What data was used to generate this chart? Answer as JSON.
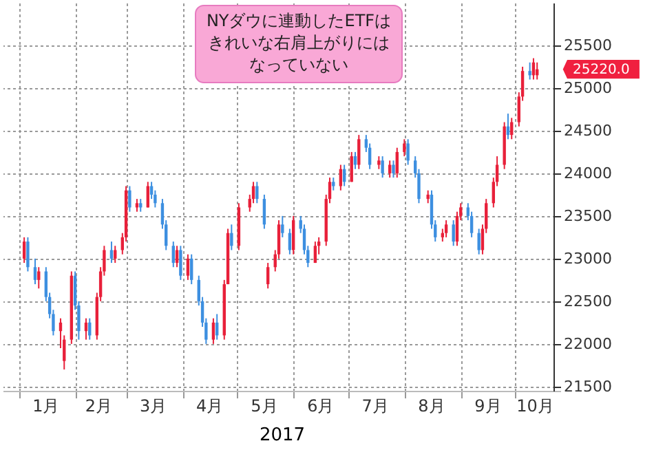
{
  "chart_data": {
    "type": "candlestick",
    "xlabel": "2017",
    "x": [
      "2017-01-04",
      "2017-01-06",
      "2017-01-10",
      "2017-01-12",
      "2017-01-16",
      "2017-01-18",
      "2017-01-20",
      "2017-01-24",
      "2017-01-26",
      "2017-01-30",
      "2017-02-01",
      "2017-02-03",
      "2017-02-07",
      "2017-02-09",
      "2017-02-13",
      "2017-02-15",
      "2017-02-17",
      "2017-02-21",
      "2017-02-23",
      "2017-02-27",
      "2017-03-01",
      "2017-03-03",
      "2017-03-07",
      "2017-03-09",
      "2017-03-13",
      "2017-03-15",
      "2017-03-17",
      "2017-03-21",
      "2017-03-23",
      "2017-03-27",
      "2017-03-29",
      "2017-03-31",
      "2017-04-04",
      "2017-04-06",
      "2017-04-10",
      "2017-04-12",
      "2017-04-14",
      "2017-04-18",
      "2017-04-20",
      "2017-04-24",
      "2017-04-26",
      "2017-04-28",
      "2017-05-02",
      "2017-05-08",
      "2017-05-10",
      "2017-05-12",
      "2017-05-16",
      "2017-05-18",
      "2017-05-22",
      "2017-05-24",
      "2017-05-26",
      "2017-05-30",
      "2017-06-01",
      "2017-06-05",
      "2017-06-07",
      "2017-06-09",
      "2017-06-13",
      "2017-06-15",
      "2017-06-19",
      "2017-06-21",
      "2017-06-23",
      "2017-06-27",
      "2017-06-29",
      "2017-07-03",
      "2017-07-05",
      "2017-07-07",
      "2017-07-11",
      "2017-07-13",
      "2017-07-18",
      "2017-07-20",
      "2017-07-24",
      "2017-07-26",
      "2017-07-28",
      "2017-08-01",
      "2017-08-03",
      "2017-08-07",
      "2017-08-09",
      "2017-08-14",
      "2017-08-16",
      "2017-08-18",
      "2017-08-22",
      "2017-08-24",
      "2017-08-28",
      "2017-08-30",
      "2017-09-01",
      "2017-09-05",
      "2017-09-07",
      "2017-09-11",
      "2017-09-13",
      "2017-09-15",
      "2017-09-19",
      "2017-09-21",
      "2017-09-25",
      "2017-09-27",
      "2017-09-29",
      "2017-10-03",
      "2017-10-05",
      "2017-10-09",
      "2017-10-11",
      "2017-10-13"
    ],
    "ohlc": [
      [
        23000,
        23250,
        22950,
        23200
      ],
      [
        23200,
        23250,
        22850,
        22900
      ],
      [
        22900,
        23000,
        22700,
        22750
      ],
      [
        22750,
        22900,
        22650,
        22850
      ],
      [
        22850,
        22900,
        22500,
        22550
      ],
      [
        22550,
        22600,
        22300,
        22350
      ],
      [
        22350,
        22400,
        22100,
        22150
      ],
      [
        22150,
        22300,
        21950,
        22250
      ],
      [
        21800,
        22100,
        21700,
        22050
      ],
      [
        22050,
        22850,
        22000,
        22800
      ],
      [
        22800,
        22850,
        22400,
        22450
      ],
      [
        22450,
        22500,
        22050,
        22150
      ],
      [
        22150,
        22300,
        22050,
        22250
      ],
      [
        22250,
        22300,
        22050,
        22100
      ],
      [
        22100,
        22600,
        22050,
        22550
      ],
      [
        22550,
        22900,
        22500,
        22850
      ],
      [
        22850,
        23150,
        22800,
        23100
      ],
      [
        23100,
        23200,
        22950,
        23000
      ],
      [
        23000,
        23150,
        22950,
        23100
      ],
      [
        23100,
        23300,
        23050,
        23250
      ],
      [
        23250,
        23850,
        23200,
        23800
      ],
      [
        23800,
        23850,
        23550,
        23600
      ],
      [
        23600,
        23700,
        23550,
        23650
      ],
      [
        23650,
        23700,
        23550,
        23600
      ],
      [
        23600,
        23900,
        23600,
        23850
      ],
      [
        23850,
        23900,
        23700,
        23750
      ],
      [
        23750,
        23800,
        23600,
        23650
      ],
      [
        23650,
        23700,
        23350,
        23400
      ],
      [
        23400,
        23450,
        23100,
        23150
      ],
      [
        23150,
        23200,
        22900,
        22950
      ],
      [
        22950,
        23150,
        22900,
        23100
      ],
      [
        23100,
        23150,
        22750,
        22800
      ],
      [
        22800,
        23050,
        22750,
        23000
      ],
      [
        23000,
        23050,
        22700,
        22750
      ],
      [
        22750,
        22800,
        22450,
        22500
      ],
      [
        22500,
        22550,
        22200,
        22250
      ],
      [
        22250,
        22300,
        22000,
        22050
      ],
      [
        22050,
        22300,
        22000,
        22250
      ],
      [
        22250,
        22350,
        22050,
        22100
      ],
      [
        22100,
        22750,
        22050,
        22700
      ],
      [
        22700,
        23350,
        22700,
        23300
      ],
      [
        23300,
        23400,
        23100,
        23150
      ],
      [
        23150,
        23650,
        23100,
        23600
      ],
      [
        23600,
        23750,
        23550,
        23700
      ],
      [
        23700,
        23900,
        23650,
        23850
      ],
      [
        23850,
        23900,
        23650,
        23700
      ],
      [
        23700,
        23750,
        23350,
        23400
      ],
      [
        22700,
        22950,
        22650,
        22900
      ],
      [
        22900,
        23100,
        22850,
        23050
      ],
      [
        23050,
        23450,
        23000,
        23400
      ],
      [
        23400,
        23500,
        23250,
        23300
      ],
      [
        23300,
        23350,
        23050,
        23100
      ],
      [
        23100,
        23500,
        23050,
        23450
      ],
      [
        23450,
        23500,
        23300,
        23350
      ],
      [
        23350,
        23400,
        23050,
        23100
      ],
      [
        23100,
        23150,
        22900,
        22950
      ],
      [
        22950,
        23200,
        22950,
        23150
      ],
      [
        23150,
        23250,
        23050,
        23200
      ],
      [
        23200,
        23750,
        23150,
        23700
      ],
      [
        23700,
        23950,
        23650,
        23900
      ],
      [
        23900,
        23950,
        23800,
        23850
      ],
      [
        23850,
        24100,
        23800,
        24050
      ],
      [
        24050,
        24100,
        23850,
        23900
      ],
      [
        23900,
        24250,
        23900,
        24200
      ],
      [
        24200,
        24250,
        24050,
        24100
      ],
      [
        24100,
        24450,
        24050,
        24400
      ],
      [
        24400,
        24450,
        24250,
        24300
      ],
      [
        24300,
        24350,
        24050,
        24100
      ],
      [
        24100,
        24200,
        24050,
        24150
      ],
      [
        24150,
        24200,
        23950,
        24000
      ],
      [
        24000,
        24150,
        23950,
        24100
      ],
      [
        24100,
        24150,
        23950,
        24000
      ],
      [
        24000,
        24300,
        23950,
        24250
      ],
      [
        24250,
        24400,
        24200,
        24350
      ],
      [
        24350,
        24400,
        24100,
        24150
      ],
      [
        24150,
        24200,
        23950,
        24000
      ],
      [
        24000,
        24050,
        23650,
        23700
      ],
      [
        23700,
        23800,
        23650,
        23750
      ],
      [
        23750,
        23800,
        23350,
        23400
      ],
      [
        23400,
        23450,
        23200,
        23250
      ],
      [
        23250,
        23350,
        23200,
        23300
      ],
      [
        23300,
        23450,
        23250,
        23400
      ],
      [
        23400,
        23450,
        23150,
        23200
      ],
      [
        23200,
        23550,
        23150,
        23500
      ],
      [
        23500,
        23650,
        23450,
        23600
      ],
      [
        23600,
        23650,
        23450,
        23500
      ],
      [
        23500,
        23550,
        23250,
        23300
      ],
      [
        23300,
        23350,
        23050,
        23100
      ],
      [
        23100,
        23400,
        23050,
        23350
      ],
      [
        23350,
        23700,
        23300,
        23650
      ],
      [
        23650,
        23950,
        23600,
        23900
      ],
      [
        23900,
        24200,
        23850,
        24100
      ],
      [
        24100,
        24600,
        24050,
        24550
      ],
      [
        24550,
        24700,
        24400,
        24450
      ],
      [
        24450,
        24650,
        24400,
        24600
      ],
      [
        24600,
        24950,
        24550,
        24900
      ],
      [
        24900,
        25250,
        24850,
        25200
      ],
      [
        25200,
        25300,
        25100,
        25150
      ],
      [
        25150,
        25350,
        25100,
        25300
      ],
      [
        25150,
        25300,
        25100,
        25220
      ]
    ],
    "colors": [
      "#e8203a",
      "#3d8fe0",
      "#3d8fe0",
      "#e8203a",
      "#3d8fe0",
      "#3d8fe0",
      "#3d8fe0",
      "#e8203a",
      "#e8203a",
      "#e8203a",
      "#3d8fe0",
      "#3d8fe0",
      "#e8203a",
      "#3d8fe0",
      "#e8203a",
      "#e8203a",
      "#e8203a",
      "#3d8fe0",
      "#e8203a",
      "#e8203a",
      "#e8203a",
      "#3d8fe0",
      "#e8203a",
      "#3d8fe0",
      "#e8203a",
      "#3d8fe0",
      "#3d8fe0",
      "#3d8fe0",
      "#3d8fe0",
      "#3d8fe0",
      "#e8203a",
      "#3d8fe0",
      "#e8203a",
      "#3d8fe0",
      "#3d8fe0",
      "#3d8fe0",
      "#3d8fe0",
      "#e8203a",
      "#3d8fe0",
      "#e8203a",
      "#e8203a",
      "#3d8fe0",
      "#e8203a",
      "#e8203a",
      "#e8203a",
      "#3d8fe0",
      "#3d8fe0",
      "#e8203a",
      "#e8203a",
      "#e8203a",
      "#3d8fe0",
      "#3d8fe0",
      "#e8203a",
      "#3d8fe0",
      "#3d8fe0",
      "#3d8fe0",
      "#e8203a",
      "#e8203a",
      "#e8203a",
      "#e8203a",
      "#3d8fe0",
      "#e8203a",
      "#3d8fe0",
      "#e8203a",
      "#3d8fe0",
      "#e8203a",
      "#3d8fe0",
      "#3d8fe0",
      "#e8203a",
      "#3d8fe0",
      "#e8203a",
      "#3d8fe0",
      "#e8203a",
      "#e8203a",
      "#3d8fe0",
      "#3d8fe0",
      "#3d8fe0",
      "#e8203a",
      "#3d8fe0",
      "#3d8fe0",
      "#e8203a",
      "#e8203a",
      "#3d8fe0",
      "#e8203a",
      "#e8203a",
      "#3d8fe0",
      "#3d8fe0",
      "#3d8fe0",
      "#e8203a",
      "#e8203a",
      "#e8203a",
      "#e8203a",
      "#e8203a",
      "#3d8fe0",
      "#e8203a",
      "#e8203a",
      "#e8203a",
      "#3d8fe0",
      "#e8203a",
      "#e8203a"
    ],
    "xlim": [
      "2016-12-27",
      "2017-10-22"
    ],
    "xticks": [
      {
        "value": "2017-01-01",
        "label": null
      },
      {
        "value": "2017-01-16",
        "label": "1月"
      },
      {
        "value": "2017-02-01",
        "label": null
      },
      {
        "value": "2017-02-14",
        "label": "2月"
      },
      {
        "value": "2017-03-01",
        "label": null
      },
      {
        "value": "2017-03-16",
        "label": "3月"
      },
      {
        "value": "2017-04-01",
        "label": null
      },
      {
        "value": "2017-04-16",
        "label": "4月"
      },
      {
        "value": "2017-05-01",
        "label": null
      },
      {
        "value": "2017-05-16",
        "label": "5月"
      },
      {
        "value": "2017-06-01",
        "label": null
      },
      {
        "value": "2017-06-16",
        "label": "6月"
      },
      {
        "value": "2017-07-01",
        "label": null
      },
      {
        "value": "2017-07-16",
        "label": "7月"
      },
      {
        "value": "2017-08-01",
        "label": null
      },
      {
        "value": "2017-08-16",
        "label": "8月"
      },
      {
        "value": "2017-09-01",
        "label": null
      },
      {
        "value": "2017-09-16",
        "label": "9月"
      },
      {
        "value": "2017-10-01",
        "label": null
      },
      {
        "value": "2017-10-12",
        "label": "10月"
      }
    ],
    "ylim": [
      21450,
      26000
    ],
    "yticks": [
      21500,
      22000,
      22500,
      23000,
      23500,
      24000,
      24500,
      25000,
      25500
    ],
    "grid": true,
    "annotations": [
      "NYダウに連動したETFはきれいな右肩上がりにはなっていない",
      "25220.0"
    ]
  }
}
